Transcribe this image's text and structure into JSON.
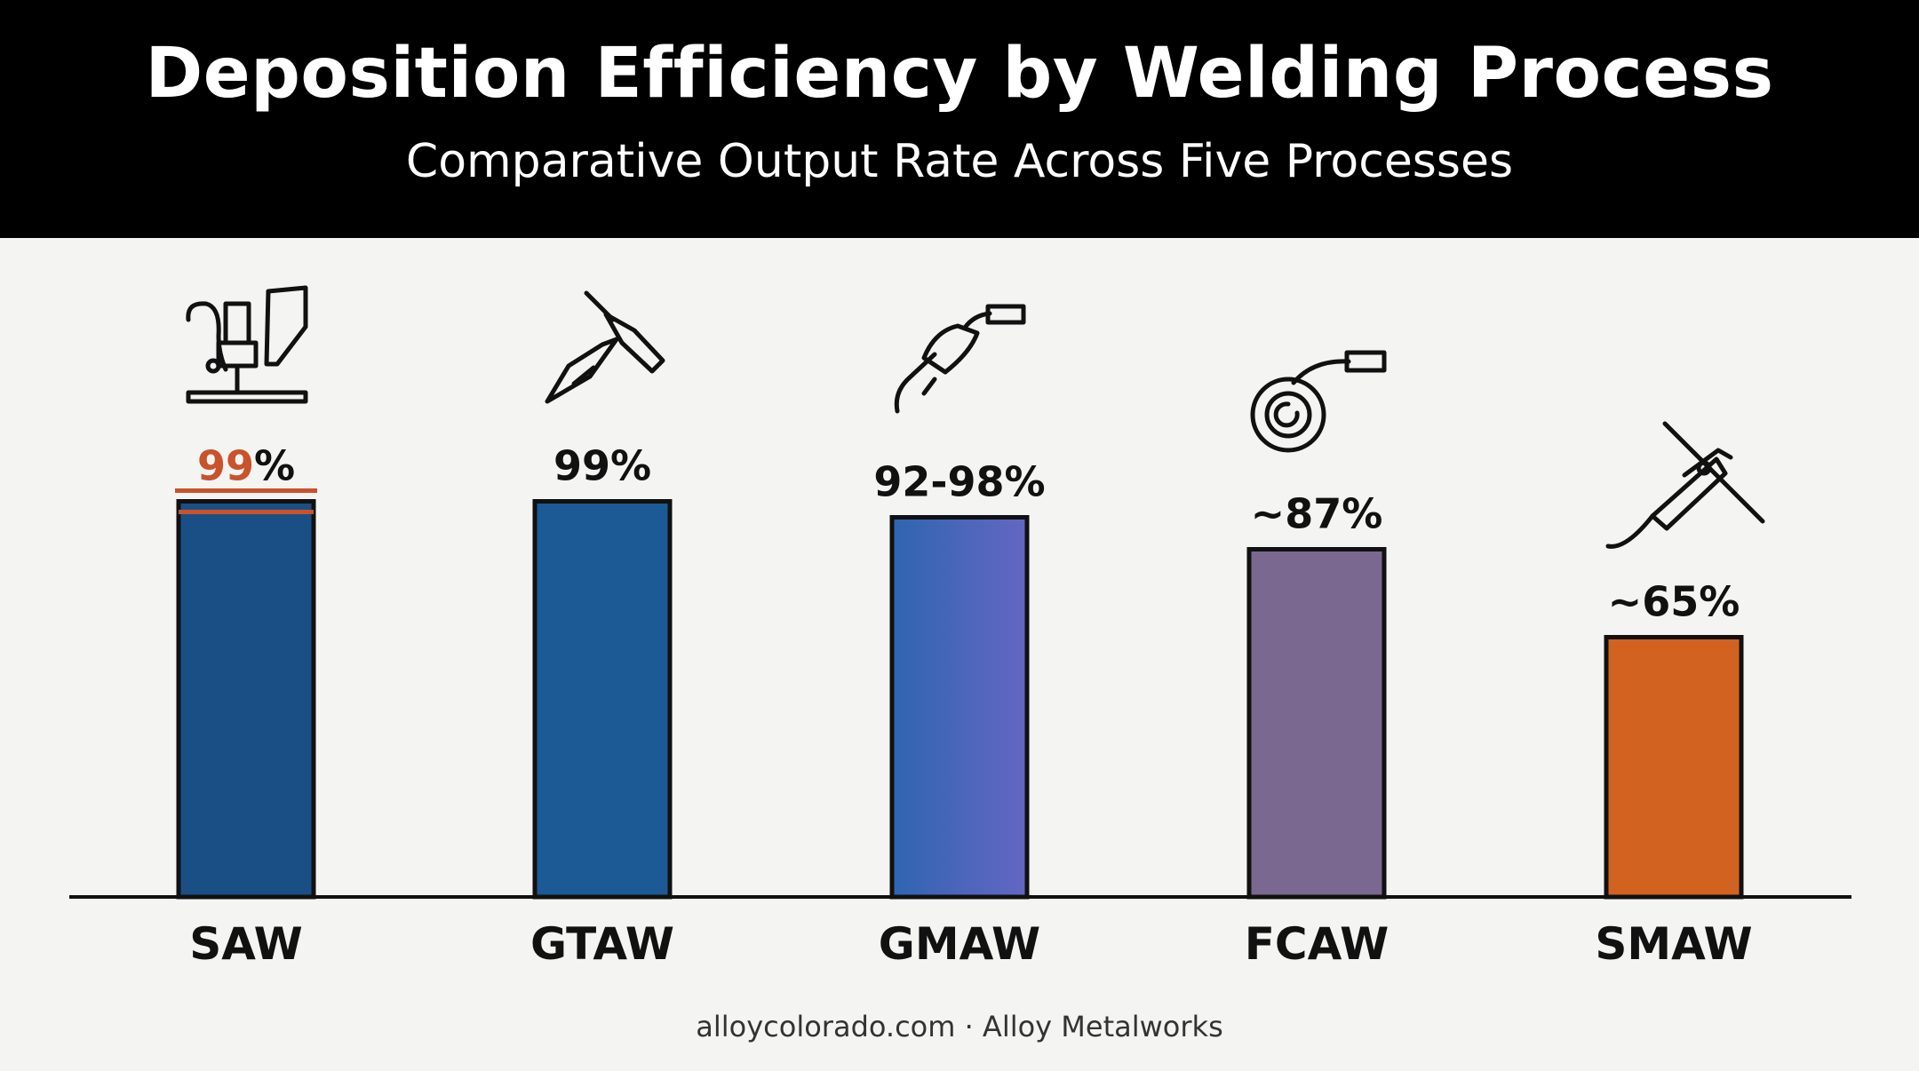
{
  "header": {
    "title": "Deposition Efficiency by Welding Process",
    "subtitle": "Comparative Output Rate Across Five Processes"
  },
  "footer": {
    "credit": "alloycolorado.com · Alloy Metalworks"
  },
  "colors": {
    "saw": "#1a4f86",
    "gtaw": "#1b5a94",
    "gmaw_start": "#2f65b0",
    "gmaw_end": "#6466c4",
    "fcaw": "#7a6890",
    "smaw": "#d26220",
    "accent": "#c9532a",
    "outline": "#111111"
  },
  "chart_data": {
    "type": "bar",
    "title": "Deposition Efficiency by Welding Process",
    "subtitle": "Comparative Output Rate Across Five Processes",
    "categories": [
      "SAW",
      "GTAW",
      "GMAW",
      "FCAW",
      "SMAW"
    ],
    "values": [
      99,
      99,
      95,
      87,
      65
    ],
    "value_labels": [
      "99%",
      "99%",
      "92-98%",
      "~87%",
      "~65%"
    ],
    "value_ranges": [
      null,
      null,
      [
        92,
        98
      ],
      null,
      null
    ],
    "icons": [
      "saw-torch-icon",
      "tig-torch-icon",
      "mig-gun-icon",
      "wire-spool-icon",
      "stick-electrode-holder-icon"
    ],
    "ylim": [
      0,
      100
    ],
    "xlabel": "",
    "ylabel": "",
    "grid": false,
    "legend": "none"
  }
}
